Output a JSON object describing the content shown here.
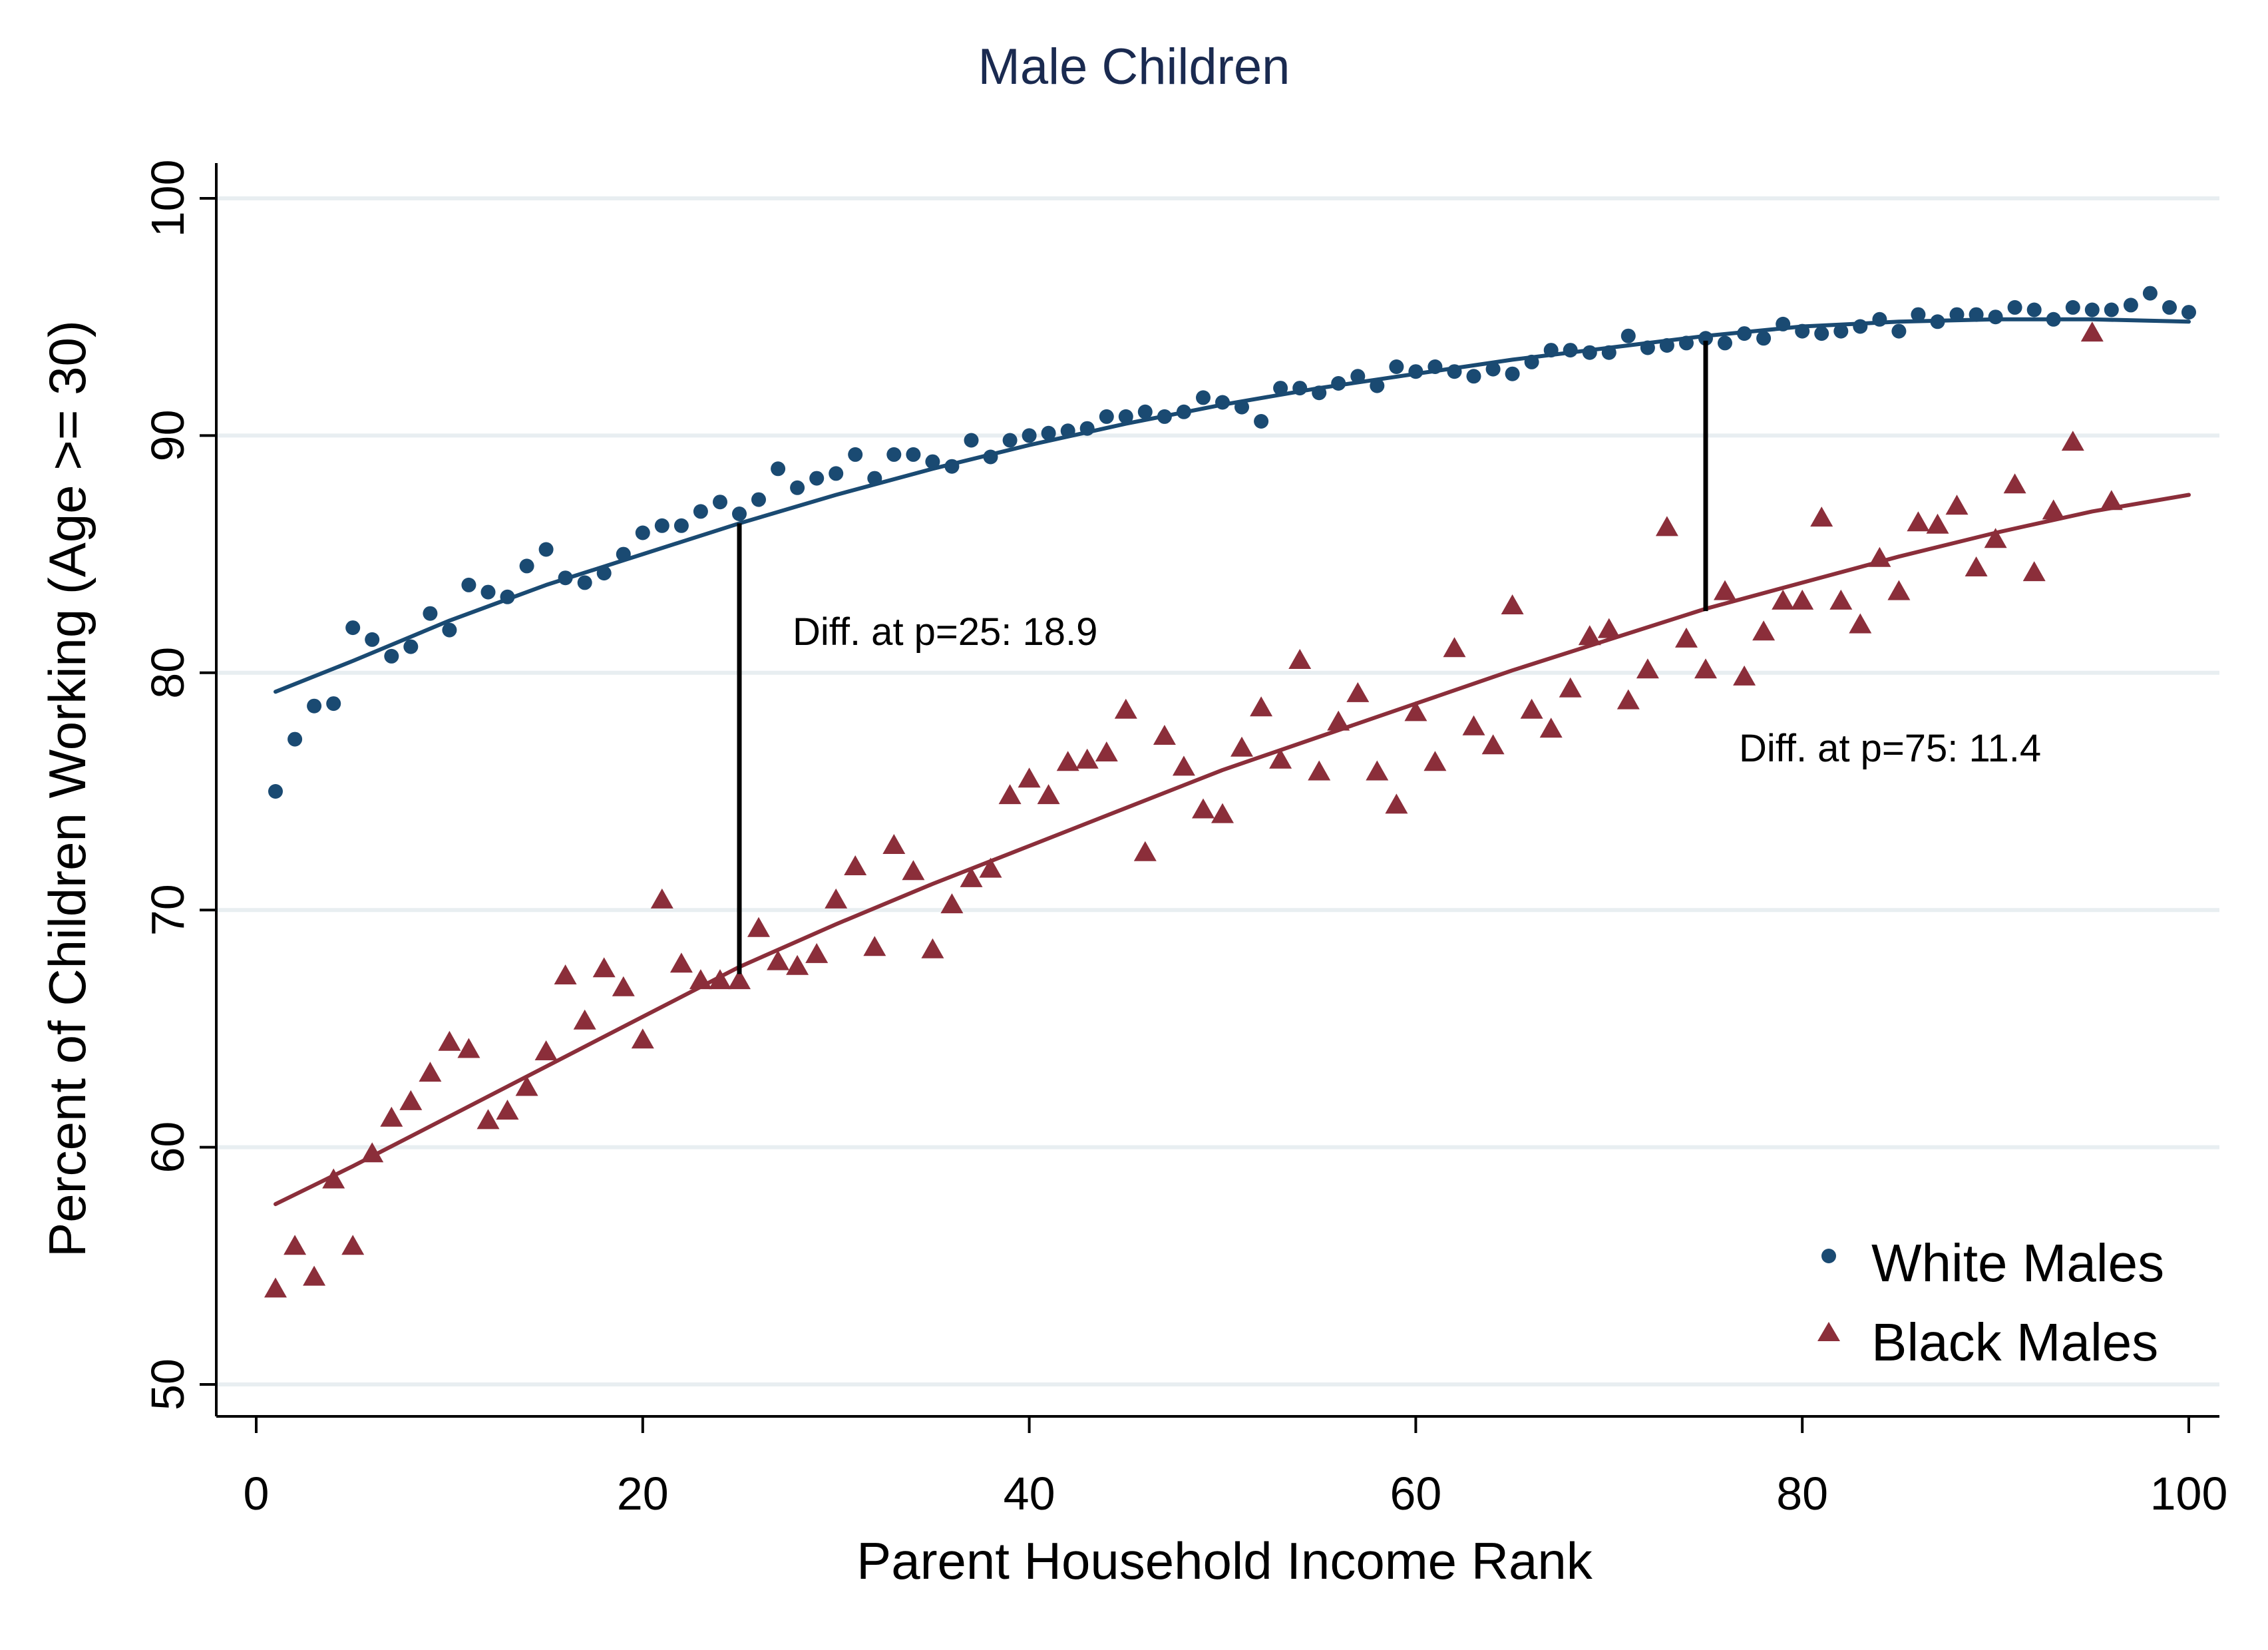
{
  "chart_data": {
    "type": "scatter",
    "title": "Male Children",
    "xlabel": "Parent Household Income Rank",
    "ylabel": "Percent of Children Working (Age >= 30)",
    "xlim": [
      0,
      100
    ],
    "ylim": [
      50,
      100
    ],
    "xticks": [
      "0",
      "20",
      "40",
      "60",
      "80",
      "100"
    ],
    "yticks": [
      "50",
      "60",
      "70",
      "80",
      "90",
      "100"
    ],
    "grid": "horizontal",
    "legend_position": "bottom-right",
    "colors": {
      "white": "#1a4a72",
      "black": "#8b2e3a",
      "title": "#1a2a50",
      "grid": "#e8eef1",
      "annotation": "#000000"
    },
    "series": [
      {
        "name": "White Males",
        "marker": "circle",
        "x": [
          1,
          2,
          3,
          4,
          5,
          6,
          7,
          8,
          9,
          10,
          11,
          12,
          13,
          14,
          15,
          16,
          17,
          18,
          19,
          20,
          21,
          22,
          23,
          24,
          25,
          26,
          27,
          28,
          29,
          30,
          31,
          32,
          33,
          34,
          35,
          36,
          37,
          38,
          39,
          40,
          41,
          42,
          43,
          44,
          45,
          46,
          47,
          48,
          49,
          50,
          51,
          52,
          53,
          54,
          55,
          56,
          57,
          58,
          59,
          60,
          61,
          62,
          63,
          64,
          65,
          66,
          67,
          68,
          69,
          70,
          71,
          72,
          73,
          74,
          75,
          76,
          77,
          78,
          79,
          80,
          81,
          82,
          83,
          84,
          85,
          86,
          87,
          88,
          89,
          90,
          91,
          92,
          93,
          94,
          95,
          96,
          97,
          98,
          99,
          100
        ],
        "y": [
          75.0,
          77.2,
          78.6,
          78.7,
          81.9,
          81.4,
          80.7,
          81.1,
          82.5,
          81.8,
          83.7,
          83.4,
          83.2,
          84.5,
          85.2,
          84.0,
          83.8,
          84.2,
          85.0,
          85.9,
          86.2,
          86.2,
          86.8,
          87.2,
          86.7,
          87.3,
          88.6,
          87.8,
          88.2,
          88.4,
          89.2,
          88.2,
          89.2,
          89.2,
          88.9,
          88.7,
          89.8,
          89.1,
          89.8,
          90.0,
          90.1,
          90.2,
          90.3,
          90.8,
          90.8,
          91.0,
          90.8,
          91.0,
          91.6,
          91.4,
          91.2,
          90.6,
          92.0,
          92.0,
          91.8,
          92.2,
          92.5,
          92.1,
          92.9,
          92.7,
          92.9,
          92.7,
          92.5,
          92.8,
          92.6,
          93.1,
          93.6,
          93.6,
          93.5,
          93.5,
          94.2,
          93.7,
          93.8,
          93.9,
          94.1,
          93.9,
          94.3,
          94.1,
          94.7,
          94.4,
          94.3,
          94.4,
          94.6,
          94.9,
          94.4,
          95.1,
          94.8,
          95.1,
          95.1,
          95.0,
          95.4,
          95.3,
          94.9,
          95.4,
          95.3,
          95.3,
          95.5,
          96.0,
          95.4,
          95.2
        ]
      },
      {
        "name": "Black Males",
        "marker": "triangle",
        "x": [
          1,
          2,
          3,
          4,
          5,
          6,
          7,
          8,
          9,
          10,
          11,
          12,
          13,
          14,
          15,
          16,
          17,
          18,
          19,
          20,
          21,
          22,
          23,
          24,
          25,
          26,
          27,
          28,
          29,
          30,
          31,
          32,
          33,
          34,
          35,
          36,
          37,
          38,
          39,
          40,
          41,
          42,
          43,
          44,
          45,
          46,
          47,
          48,
          49,
          50,
          51,
          52,
          53,
          54,
          55,
          56,
          57,
          58,
          59,
          60,
          61,
          62,
          63,
          64,
          65,
          66,
          67,
          68,
          69,
          70,
          71,
          72,
          73,
          74,
          75,
          76,
          77,
          78,
          79,
          80,
          81,
          82,
          83,
          84,
          85,
          86,
          87,
          88,
          89,
          90,
          91,
          92,
          93,
          94,
          95,
          96
        ],
        "y": [
          54.0,
          55.8,
          54.5,
          58.6,
          55.8,
          59.7,
          61.2,
          61.9,
          63.1,
          64.4,
          64.1,
          61.1,
          61.5,
          62.5,
          64.0,
          67.2,
          65.3,
          67.5,
          66.7,
          64.5,
          70.4,
          67.7,
          67.0,
          67.0,
          67.0,
          69.2,
          67.8,
          67.6,
          68.1,
          70.4,
          71.8,
          68.4,
          72.7,
          71.6,
          68.3,
          70.2,
          71.3,
          71.7,
          74.8,
          75.5,
          74.8,
          76.2,
          76.3,
          76.6,
          78.4,
          72.4,
          77.3,
          76.0,
          74.2,
          74.0,
          76.8,
          78.5,
          76.3,
          80.5,
          75.8,
          77.9,
          79.1,
          75.8,
          74.4,
          78.3,
          76.2,
          81.0,
          77.7,
          76.9,
          82.8,
          78.4,
          77.6,
          79.3,
          81.5,
          81.8,
          78.8,
          80.1,
          86.1,
          81.4,
          80.1,
          83.4,
          79.8,
          81.7,
          83.0,
          83.0,
          86.5,
          83.0,
          82.0,
          84.8,
          83.4,
          86.3,
          86.2,
          87.0,
          84.4,
          85.6,
          87.9,
          84.2,
          86.8,
          89.7,
          94.3,
          87.2
        ]
      }
    ],
    "fits": [
      {
        "series": "White Males",
        "x": [
          1,
          5,
          10,
          15,
          20,
          25,
          30,
          35,
          40,
          45,
          50,
          55,
          60,
          65,
          70,
          75,
          80,
          85,
          90,
          95,
          100
        ],
        "y": [
          79.2,
          80.5,
          82.2,
          83.7,
          85.0,
          86.3,
          87.5,
          88.6,
          89.6,
          90.5,
          91.3,
          92.0,
          92.6,
          93.2,
          93.7,
          94.2,
          94.6,
          94.8,
          94.9,
          94.9,
          94.8
        ]
      },
      {
        "series": "Black Males",
        "x": [
          1,
          5,
          10,
          15,
          20,
          25,
          30,
          35,
          40,
          45,
          50,
          55,
          60,
          65,
          70,
          75,
          80,
          85,
          90,
          95,
          100
        ],
        "y": [
          57.6,
          59.2,
          61.3,
          63.4,
          65.5,
          67.6,
          69.4,
          71.1,
          72.7,
          74.3,
          75.9,
          77.3,
          78.7,
          80.1,
          81.4,
          82.7,
          83.8,
          84.9,
          85.9,
          86.8,
          87.5
        ]
      }
    ],
    "annotations": [
      {
        "label": "Diff. at p=25: 18.9",
        "x": 25,
        "y_low": 67.3,
        "y_high": 86.3
      },
      {
        "label": "Diff. at p=75: 11.4",
        "x": 75,
        "y_low": 82.6,
        "y_high": 94.0
      }
    ]
  }
}
